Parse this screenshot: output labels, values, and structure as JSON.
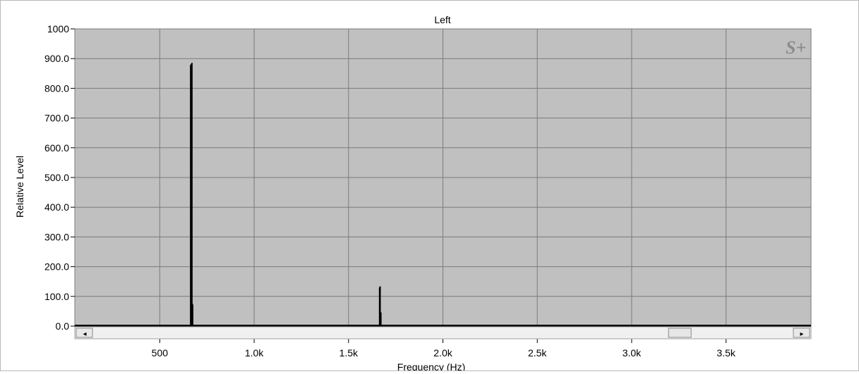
{
  "chart_data": {
    "type": "bar",
    "title": "Left",
    "xlabel": "Frequency (Hz)",
    "ylabel": "Relative Level",
    "xlim": [
      50,
      3950
    ],
    "ylim": [
      0,
      1000
    ],
    "x_ticks": [
      500,
      1000,
      1500,
      2000,
      2500,
      3000,
      3500
    ],
    "x_tick_labels": [
      "500",
      "1.0k",
      "1.5k",
      "2.0k",
      "2.5k",
      "3.0k",
      "3.5k"
    ],
    "y_ticks": [
      0,
      100,
      200,
      300,
      400,
      500,
      600,
      700,
      800,
      900,
      1000
    ],
    "y_tick_labels": [
      "0.0",
      "100.0",
      "200.0",
      "300.0",
      "400.0",
      "500.0",
      "600.0",
      "700.0",
      "800.0",
      "900.0",
      "1000"
    ],
    "grid": true,
    "series": [
      {
        "x": [
          663,
          665,
          667,
          669,
          671,
          673,
          675,
          1664,
          1666,
          1668,
          1670,
          1672
        ],
        "values": [
          878,
          880,
          882,
          884,
          886,
          75,
          72,
          130,
          132,
          134,
          48,
          45
        ]
      }
    ],
    "watermark": "S+",
    "colors": {
      "plot_background": "#c0c0c0",
      "grid": "#7a7a7a",
      "bars": "#000000"
    }
  },
  "scrollbar": {
    "left_arrow": "◂",
    "right_arrow": "▸",
    "position": 0.85
  }
}
